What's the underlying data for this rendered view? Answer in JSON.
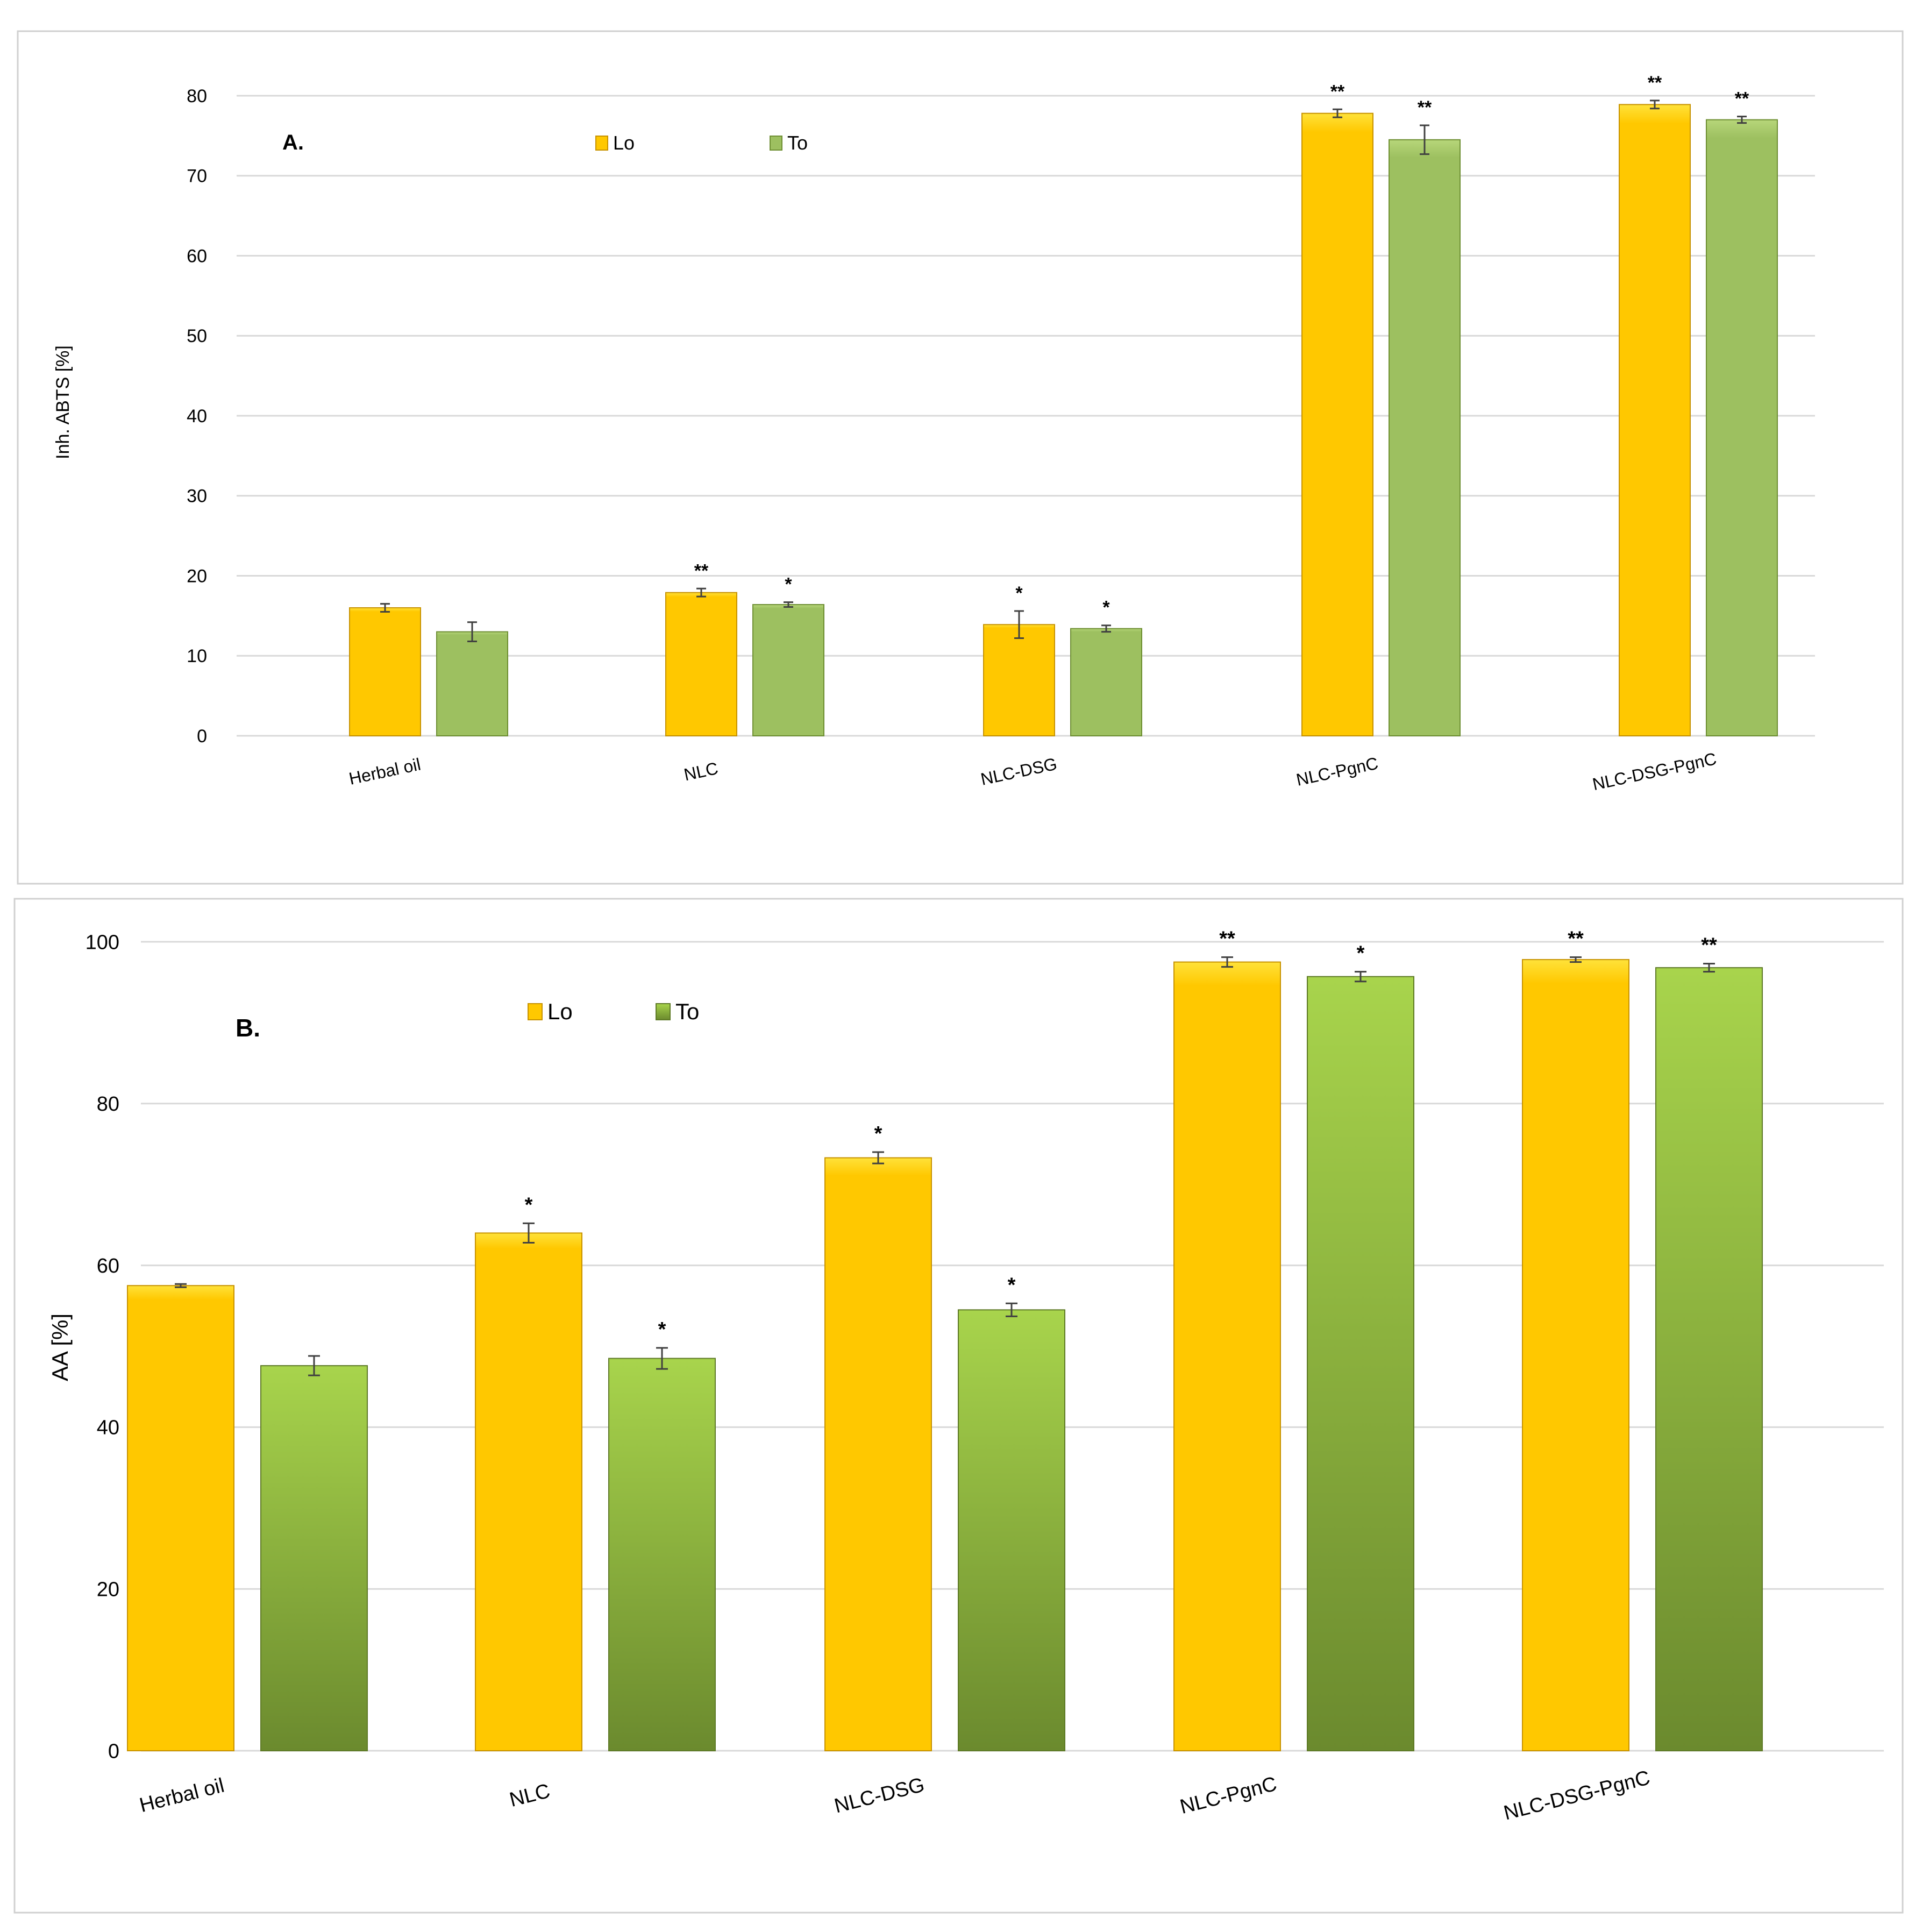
{
  "colors": {
    "lo_top": "#FFE23A",
    "lo_main": "#FFC800",
    "lo_edge": "#C79200",
    "to_top_a": "#B7D67A",
    "to_main_a": "#9DC060",
    "to_edge_a": "#6E8F33",
    "to_top_b": "#A8D44C",
    "to_bottom_b": "#6B8A2E",
    "grid": "#D9D9D9",
    "frame": "#D0D0D0",
    "text": "#000000",
    "error": "#404040"
  },
  "chart_data": [
    {
      "type": "bar",
      "panel_label": "A.",
      "ylabel": "Inh. ABTS [%]",
      "xlabel": "",
      "ylim": [
        0,
        80
      ],
      "yticks": [
        0,
        10,
        20,
        30,
        40,
        50,
        60,
        70,
        80
      ],
      "grid": true,
      "legend_position": "top-center",
      "categories": [
        "Herbal oil",
        "NLC",
        "NLC-DSG",
        "NLC-PgnC",
        "NLC-DSG-PgnC"
      ],
      "series": [
        {
          "name": "Lo",
          "values": [
            16.0,
            17.9,
            13.9,
            77.8,
            78.9
          ],
          "errors": [
            0.5,
            0.5,
            1.7,
            0.5,
            0.5
          ],
          "significance": [
            "",
            "**",
            "*",
            "**",
            "**"
          ]
        },
        {
          "name": "To",
          "values": [
            13.0,
            16.4,
            13.4,
            74.5,
            77.0
          ],
          "errors": [
            1.2,
            0.3,
            0.4,
            1.8,
            0.4
          ],
          "significance": [
            "",
            "*",
            "*",
            "**",
            "**"
          ]
        }
      ]
    },
    {
      "type": "bar",
      "panel_label": "B.",
      "ylabel": "AA [%]",
      "xlabel": "",
      "ylim": [
        0,
        100
      ],
      "yticks": [
        0,
        20,
        40,
        60,
        80,
        100
      ],
      "grid": true,
      "legend_position": "top-center",
      "categories": [
        "Herbal oil",
        "NLC",
        "NLC-DSG",
        "NLC-PgnC",
        "NLC-DSG-PgnC"
      ],
      "series": [
        {
          "name": "Lo",
          "values": [
            57.5,
            64.0,
            73.3,
            97.5,
            97.8
          ],
          "errors": [
            0.2,
            1.2,
            0.7,
            0.6,
            0.3
          ],
          "significance": [
            "",
            "*",
            "*",
            "**",
            "**"
          ]
        },
        {
          "name": "To",
          "values": [
            47.6,
            48.5,
            54.5,
            95.7,
            96.8
          ],
          "errors": [
            1.2,
            1.3,
            0.8,
            0.6,
            0.5
          ],
          "significance": [
            "",
            "*",
            "*",
            "*",
            "**"
          ]
        }
      ]
    }
  ]
}
